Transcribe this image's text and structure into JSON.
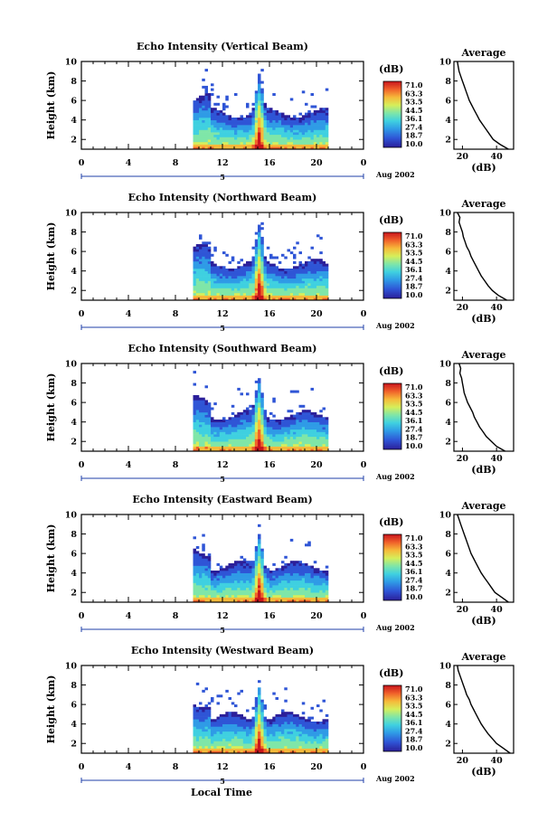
{
  "figure": {
    "date_label": "Aug 2002",
    "x_axis_label": "Local Time",
    "day_marker": "5"
  },
  "colorbar": {
    "unit": "(dB)",
    "ticks": [
      "71.0",
      "63.3",
      "53.5",
      "44.5",
      "36.1",
      "27.4",
      "18.7",
      "10.0"
    ],
    "colors": [
      "#2b1f9a",
      "#2f55d6",
      "#2f9be6",
      "#3fd0e0",
      "#7fe6a8",
      "#d6ee5a",
      "#f6b93a",
      "#f0602a",
      "#c8141c"
    ]
  },
  "chart_data": [
    {
      "type": "heatmap",
      "title": "Echo Intensity (Vertical Beam)",
      "ylabel": "Height (km)",
      "xlim": [
        0,
        24
      ],
      "ylim": [
        1,
        10
      ],
      "x_ticks": [
        "0",
        "4",
        "8",
        "12",
        "16",
        "20",
        "0"
      ],
      "y_ticks": [
        "2",
        "4",
        "6",
        "8",
        "10"
      ],
      "data_time_range_hours": [
        9.5,
        21
      ],
      "profile": {
        "title": "Average",
        "xlabel": "(dB)",
        "x_ticks": [
          "20",
          "40"
        ],
        "xlim": [
          15,
          50
        ],
        "heights": [
          10,
          9.5,
          9,
          8.5,
          8,
          7.5,
          7,
          6.5,
          6,
          5.5,
          5,
          4.5,
          4,
          3.5,
          3,
          2.5,
          2,
          1.5,
          1
        ],
        "values": [
          17,
          17.5,
          18,
          19,
          20,
          21,
          22,
          23,
          24,
          25.5,
          27,
          28.5,
          30,
          32,
          34,
          36,
          38,
          42,
          47
        ]
      }
    },
    {
      "type": "heatmap",
      "title": "Echo Intensity (Northward Beam)",
      "ylabel": "Height (km)",
      "xlim": [
        0,
        24
      ],
      "ylim": [
        1,
        10
      ],
      "x_ticks": [
        "0",
        "4",
        "8",
        "12",
        "16",
        "20",
        "0"
      ],
      "y_ticks": [
        "2",
        "4",
        "6",
        "8",
        "10"
      ],
      "data_time_range_hours": [
        9.5,
        21
      ],
      "profile": {
        "title": "Average",
        "xlabel": "(dB)",
        "x_ticks": [
          "20",
          "40"
        ],
        "xlim": [
          15,
          50
        ],
        "heights": [
          10,
          9.5,
          9,
          8.5,
          8,
          7.5,
          7,
          6.5,
          6,
          5.5,
          5,
          4.5,
          4,
          3.5,
          3,
          2.5,
          2,
          1.5,
          1
        ],
        "values": [
          17,
          18.5,
          18,
          19,
          20,
          20.5,
          21.5,
          22.5,
          24,
          25,
          26.5,
          28,
          29.5,
          31,
          33,
          35,
          37.5,
          41,
          46
        ]
      }
    },
    {
      "type": "heatmap",
      "title": "Echo Intensity (Southward Beam)",
      "ylabel": "Height (km)",
      "xlim": [
        0,
        24
      ],
      "ylim": [
        1,
        10
      ],
      "x_ticks": [
        "0",
        "4",
        "8",
        "12",
        "16",
        "20",
        "0"
      ],
      "y_ticks": [
        "2",
        "4",
        "6",
        "8",
        "10"
      ],
      "data_time_range_hours": [
        9.5,
        21
      ],
      "profile": {
        "title": "Average",
        "xlabel": "(dB)",
        "x_ticks": [
          "20",
          "40"
        ],
        "xlim": [
          15,
          50
        ],
        "heights": [
          10,
          9.5,
          9,
          8.5,
          8,
          7.5,
          7,
          6.5,
          6,
          5.5,
          5,
          4.5,
          4,
          3.5,
          3,
          2.5,
          2,
          1.5,
          1
        ],
        "values": [
          18,
          19,
          18.5,
          19.5,
          20,
          20.5,
          21,
          22,
          23,
          24.5,
          26,
          27,
          28.5,
          30,
          32,
          34,
          37,
          40,
          45
        ]
      }
    },
    {
      "type": "heatmap",
      "title": "Echo Intensity (Eastward Beam)",
      "ylabel": "Height (km)",
      "xlim": [
        0,
        24
      ],
      "ylim": [
        1,
        10
      ],
      "x_ticks": [
        "0",
        "4",
        "8",
        "12",
        "16",
        "20",
        "0"
      ],
      "y_ticks": [
        "2",
        "4",
        "6",
        "8",
        "10"
      ],
      "data_time_range_hours": [
        9.5,
        21
      ],
      "profile": {
        "title": "Average",
        "xlabel": "(dB)",
        "x_ticks": [
          "20",
          "40"
        ],
        "xlim": [
          15,
          50
        ],
        "heights": [
          10,
          9.5,
          9,
          8.5,
          8,
          7.5,
          7,
          6.5,
          6,
          5.5,
          5,
          4.5,
          4,
          3.5,
          3,
          2.5,
          2,
          1.5,
          1
        ],
        "values": [
          17,
          18,
          19,
          20,
          21,
          22,
          23,
          24,
          25,
          26.5,
          28,
          29.5,
          31,
          33,
          35,
          37,
          39,
          43,
          47
        ]
      }
    },
    {
      "type": "heatmap",
      "title": "Echo Intensity (Westward Beam)",
      "ylabel": "Height (km)",
      "xlim": [
        0,
        24
      ],
      "ylim": [
        1,
        10
      ],
      "x_ticks": [
        "0",
        "4",
        "8",
        "12",
        "16",
        "20",
        "0"
      ],
      "y_ticks": [
        "2",
        "4",
        "6",
        "8",
        "10"
      ],
      "data_time_range_hours": [
        9.5,
        21
      ],
      "profile": {
        "title": "Average",
        "xlabel": "(dB)",
        "x_ticks": [
          "20",
          "40"
        ],
        "xlim": [
          15,
          50
        ],
        "heights": [
          10,
          9.5,
          9,
          8.5,
          8,
          7.5,
          7,
          6.5,
          6,
          5.5,
          5,
          4.5,
          4,
          3.5,
          3,
          2.5,
          2,
          1.5,
          1
        ],
        "values": [
          17,
          17.5,
          18.5,
          19.5,
          20.5,
          21.5,
          22.5,
          24,
          25,
          26.5,
          28,
          29.5,
          31,
          33,
          35,
          37.5,
          40,
          44,
          48
        ]
      }
    }
  ]
}
